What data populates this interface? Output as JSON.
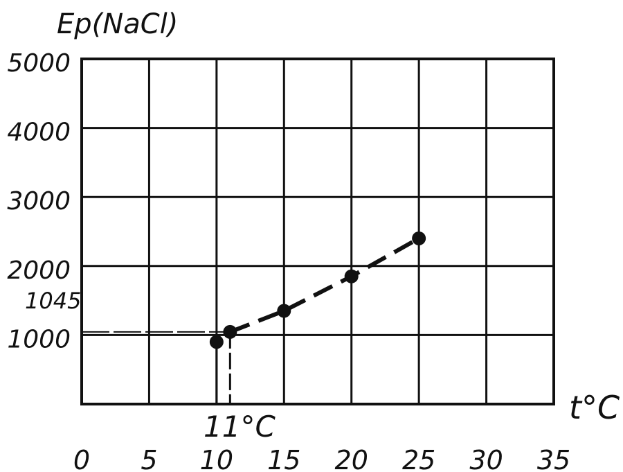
{
  "chart_data": {
    "type": "line",
    "title": "",
    "ylabel": "Ep(NaCl)",
    "xlabel": "t°C",
    "xlim": [
      0,
      35
    ],
    "ylim": [
      0,
      5000
    ],
    "x_ticks": [
      0,
      5,
      10,
      15,
      20,
      25,
      30,
      35
    ],
    "x_tick_labels": [
      "0",
      "5",
      "10",
      "15",
      "20",
      "25",
      "30",
      "35"
    ],
    "y_ticks": [
      1000,
      2000,
      3000,
      4000,
      5000
    ],
    "y_tick_labels": [
      "1000",
      "2000",
      "3000",
      "4000",
      "5000"
    ],
    "grid": true,
    "line_style": "dashed",
    "series": [
      {
        "x": [
          10,
          11,
          15,
          20,
          25
        ],
        "y": [
          900,
          1045,
          1350,
          1850,
          2400
        ]
      }
    ],
    "annotations": [
      {
        "id": "y-marker",
        "text": "1045",
        "value": 1045
      },
      {
        "id": "x-marker",
        "text": "11°C",
        "value": 11
      }
    ]
  }
}
